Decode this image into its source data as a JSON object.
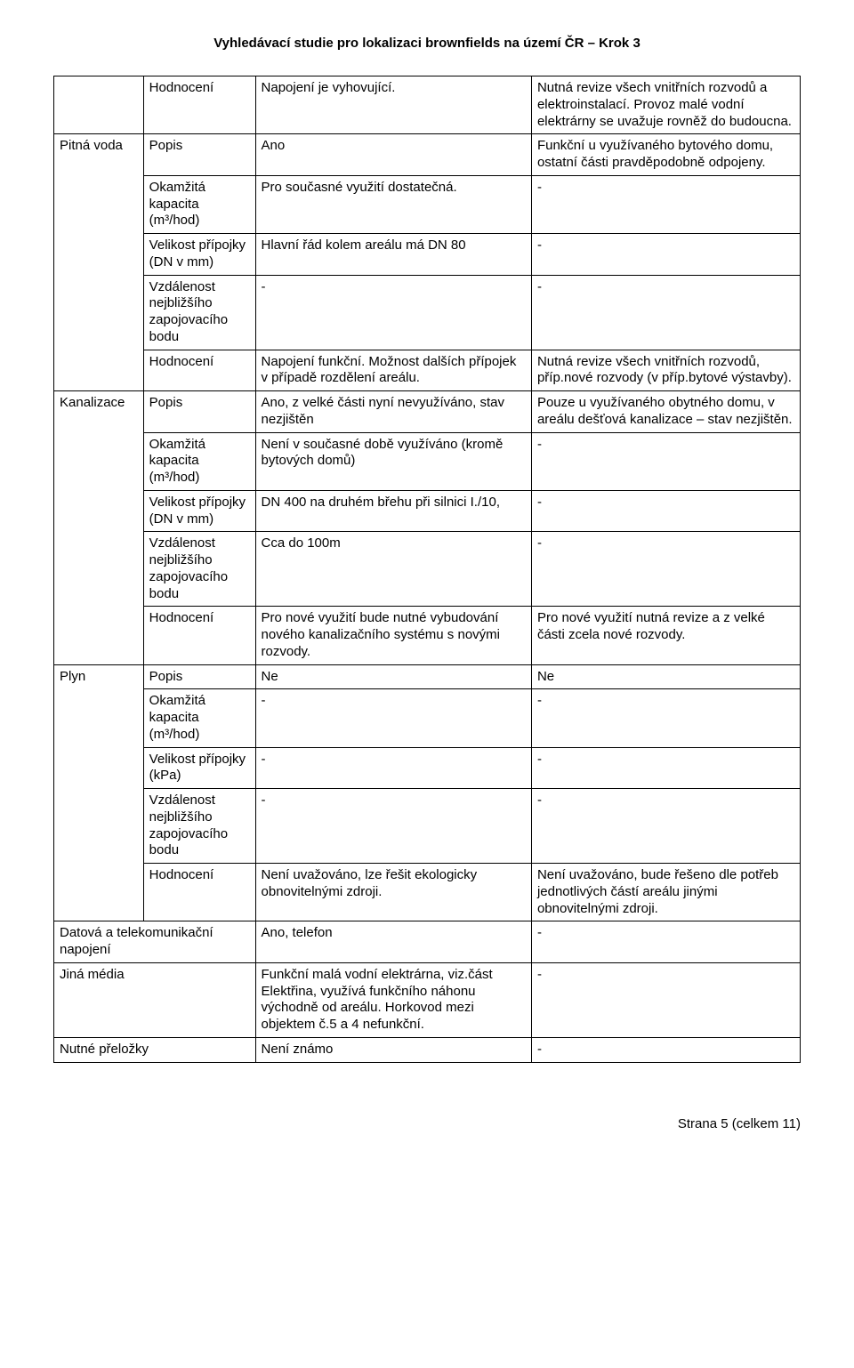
{
  "header": "Vyhledávací studie pro lokalizaci brownfields na území ČR – Krok 3",
  "footer": "Strana 5 (celkem 11)",
  "rows": {
    "r0": {
      "c2": "Hodnocení",
      "c3": "Napojení je vyhovující.",
      "c4": "Nutná revize všech vnitřních rozvodů a elektroinstalací. Provoz malé vodní elektrárny se uvažuje rovněž do budoucna."
    },
    "pitna": {
      "label": "Pitná voda",
      "popis": {
        "a": "Popis",
        "b": "Ano",
        "c": "Funkční u využívaného bytového domu, ostatní části pravděpodobně odpojeny."
      },
      "okamzita": {
        "a": "Okamžitá kapacita (m³/hod)",
        "b": "Pro současné využití dostatečná.",
        "c": "-"
      },
      "velikost": {
        "a": "Velikost přípojky (DN v mm)",
        "b": "Hlavní řád kolem areálu má DN 80",
        "c": "-"
      },
      "vzdalenost": {
        "a": "Vzdálenost nejbližšího zapojovacího bodu",
        "b": "-",
        "c": "-"
      },
      "hodnoceni": {
        "a": "Hodnocení",
        "b": "Napojení funkční. Možnost dalších přípojek v případě rozdělení areálu.",
        "c": "Nutná revize všech vnitřních rozvodů, příp.nové rozvody (v příp.bytové výstavby)."
      }
    },
    "kanal": {
      "label": "Kanalizace",
      "popis": {
        "a": "Popis",
        "b": "Ano, z velké části nyní nevyužíváno, stav nezjištěn",
        "c": "Pouze u využívaného obytného domu, v areálu dešťová kanalizace – stav nezjištěn."
      },
      "okamzita": {
        "a": "Okamžitá kapacita (m³/hod)",
        "b": "Není v současné době využíváno (kromě bytových domů)",
        "c": "-"
      },
      "velikost": {
        "a": "Velikost přípojky (DN v mm)",
        "b": "DN 400 na druhém břehu při silnici I./10,",
        "c": "-"
      },
      "vzdalenost": {
        "a": "Vzdálenost nejbližšího zapojovacího bodu",
        "b": "Cca do 100m",
        "c": "-"
      },
      "hodnoceni": {
        "a": "Hodnocení",
        "b": "Pro nové využití bude nutné vybudování nového kanalizačního systému s novými rozvody.",
        "c": "Pro nové využití nutná revize a z velké části zcela nové rozvody."
      }
    },
    "plyn": {
      "label": "Plyn",
      "popis": {
        "a": "Popis",
        "b": "Ne",
        "c": "Ne"
      },
      "okamzita": {
        "a": "Okamžitá kapacita (m³/hod)",
        "b": "-",
        "c": "-"
      },
      "velikost": {
        "a": "Velikost přípojky (kPa)",
        "b": "-",
        "c": "-"
      },
      "vzdalenost": {
        "a": "Vzdálenost nejbližšího zapojovacího bodu",
        "b": "-",
        "c": "-"
      },
      "hodnoceni": {
        "a": "Hodnocení",
        "b": "Není uvažováno, lze řešit ekologicky obnovitelnými zdroji.",
        "c": "Není uvažováno, bude řešeno dle potřeb jednotlivých částí areálu jinými obnovitelnými zdroji."
      }
    },
    "datova": {
      "a": "Datová a telekomunikační napojení",
      "b": "Ano, telefon",
      "c": "-"
    },
    "jina": {
      "a": "Jiná média",
      "b": "Funkční malá vodní elektrárna, viz.část Elektřina, využívá funkčního náhonu východně od areálu. Horkovod mezi objektem č.5 a 4 nefunkční.",
      "c": "-"
    },
    "nutne": {
      "a": "Nutné přeložky",
      "b": "Není známo",
      "c": "-"
    }
  }
}
